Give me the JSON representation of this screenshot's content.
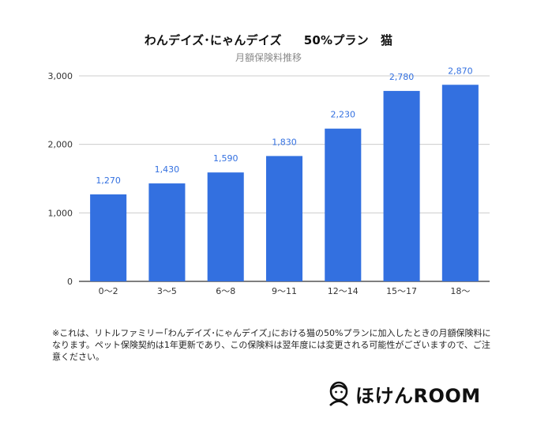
{
  "chart_data": {
    "type": "bar",
    "title": "わんデイズ･にゃんデイズ",
    "title_plan": "50%プラン　猫",
    "subtitle": "月額保険料推移",
    "categories": [
      "0〜2",
      "3〜5",
      "6〜8",
      "9〜11",
      "12〜14",
      "15〜17",
      "18〜"
    ],
    "values": [
      1270,
      1430,
      1590,
      1830,
      2230,
      2780,
      2870
    ],
    "value_labels": [
      "1,270",
      "1,430",
      "1,590",
      "1,830",
      "2,230",
      "2,780",
      "2,870"
    ],
    "ylim": [
      0,
      3000
    ],
    "yticks": [
      0,
      1000,
      2000,
      3000
    ],
    "ytick_labels": [
      "0",
      "1,000",
      "2,000",
      "3,000"
    ],
    "grid": true,
    "bar_color": "#3370E0",
    "label_color": "#3370E0"
  },
  "footnote": "※これは、リトルファミリー｢わんデイズ･にゃんデイズ｣における猫の50%プランに加入したときの月額保険料になります。ペット保険契約は1年更新であり、この保険料は翌年度には変更される可能性がございますので、ご注意ください。",
  "brand": {
    "name": "ほけんROOM",
    "icon": "person-face-icon"
  }
}
